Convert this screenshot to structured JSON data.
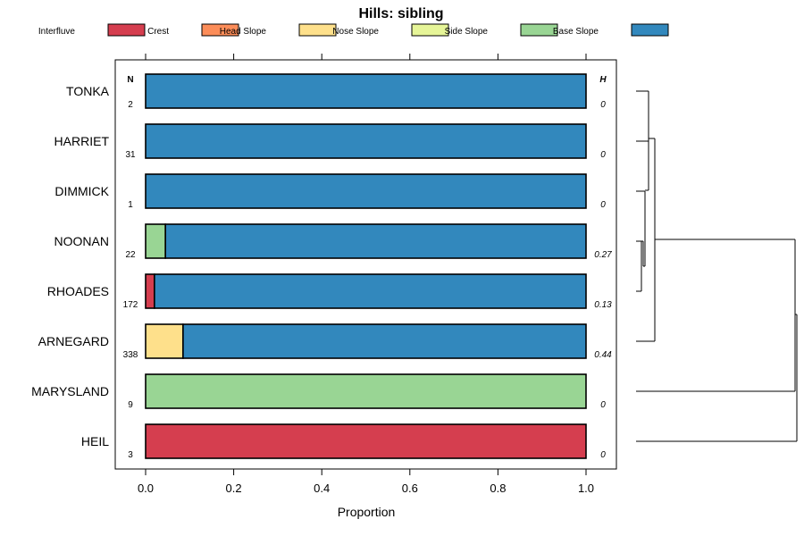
{
  "chart_data": {
    "type": "bar",
    "orientation": "horizontal",
    "stacked": true,
    "title": "Hills: sibling",
    "xlabel": "Proportion",
    "xlim": [
      0,
      1
    ],
    "x_ticks": [
      "0.0",
      "0.2",
      "0.4",
      "0.6",
      "0.8",
      "1.0"
    ],
    "n_header": "N",
    "h_header": "H",
    "legend_position": "top",
    "legend": [
      {
        "name": "Interfluve",
        "color": "#D53E4F"
      },
      {
        "name": "Crest",
        "color": "#FC8D59"
      },
      {
        "name": "Head Slope",
        "color": "#FEE08B"
      },
      {
        "name": "Nose Slope",
        "color": "#E6F598"
      },
      {
        "name": "Side Slope",
        "color": "#99D594"
      },
      {
        "name": "Base Slope",
        "color": "#3288BD"
      }
    ],
    "categories": [
      "TONKA",
      "HARRIET",
      "DIMMICK",
      "NOONAN",
      "RHOADES",
      "ARNEGARD",
      "MARYSLAND",
      "HEIL"
    ],
    "n": [
      "2",
      "31",
      "1",
      "22",
      "172",
      "338",
      "9",
      "3"
    ],
    "h": [
      "0",
      "0",
      "0",
      "0.27",
      "0.13",
      "0.44",
      "0",
      "0"
    ],
    "series": [
      {
        "name": "Interfluve",
        "values": [
          0,
          0,
          0,
          0,
          0.02,
          0,
          0,
          1
        ]
      },
      {
        "name": "Crest",
        "values": [
          0,
          0,
          0,
          0,
          0,
          0,
          0,
          0
        ]
      },
      {
        "name": "Head Slope",
        "values": [
          0,
          0,
          0,
          0,
          0,
          0.085,
          0,
          0
        ]
      },
      {
        "name": "Nose Slope",
        "values": [
          0,
          0,
          0,
          0,
          0,
          0,
          0,
          0
        ]
      },
      {
        "name": "Side Slope",
        "values": [
          0,
          0,
          0,
          0.045,
          0,
          0,
          1,
          0
        ]
      },
      {
        "name": "Base Slope",
        "values": [
          1,
          1,
          1,
          0.955,
          0.98,
          0.915,
          0,
          0
        ]
      }
    ],
    "dendrogram": true
  }
}
